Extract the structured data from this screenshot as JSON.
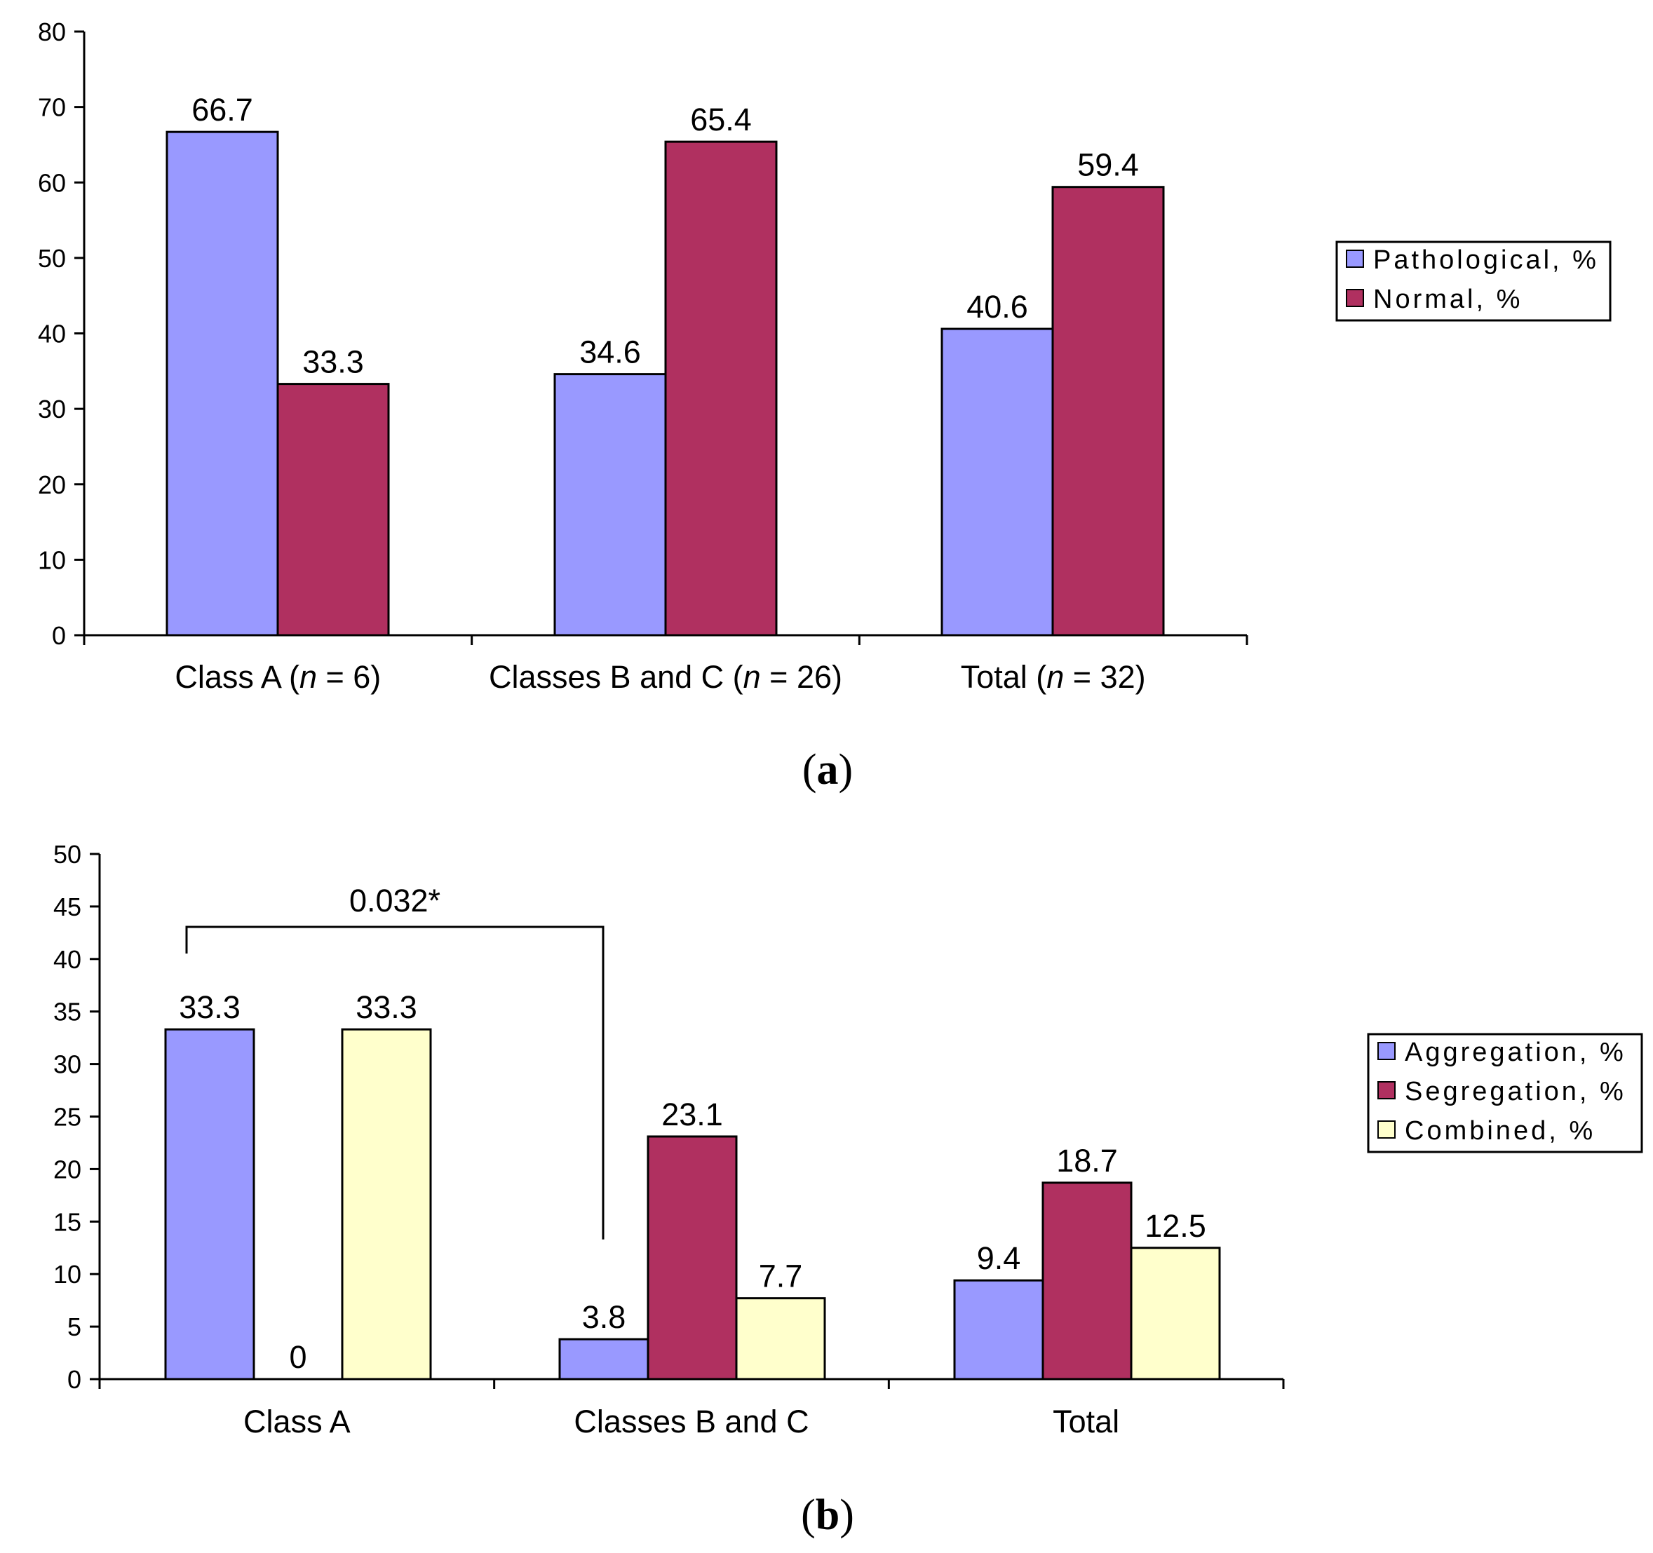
{
  "chart_data": [
    {
      "type": "bar",
      "panel_label": "a",
      "categories": [
        {
          "text": "Class A (",
          "italic": "n",
          "rest": " = 6)"
        },
        {
          "text": "Classes B and C (",
          "italic": "n",
          "rest": " = 26)"
        },
        {
          "text": "Total (",
          "italic": "n",
          "rest": " = 32)"
        }
      ],
      "series": [
        {
          "name": "Pathological, %",
          "color": "#9999FF",
          "values": [
            66.7,
            34.6,
            40.6
          ],
          "labels": [
            "66.7",
            "34.6",
            "40.6"
          ]
        },
        {
          "name": "Normal, %",
          "color": "#B03060",
          "values": [
            33.3,
            65.4,
            59.4
          ],
          "labels": [
            "33.3",
            "65.4",
            "59.4"
          ]
        }
      ],
      "ylim": [
        0,
        80
      ],
      "yticks": [
        "0",
        "10",
        "20",
        "30",
        "40",
        "50",
        "60",
        "70",
        "80"
      ],
      "legend_position": "right"
    },
    {
      "type": "bar",
      "panel_label": "b",
      "categories": [
        {
          "text": "Class A",
          "italic": "",
          "rest": ""
        },
        {
          "text": "Classes B and C",
          "italic": "",
          "rest": ""
        },
        {
          "text": "Total",
          "italic": "",
          "rest": ""
        }
      ],
      "series": [
        {
          "name": "Aggregation, %",
          "color": "#9999FF",
          "values": [
            33.3,
            3.8,
            9.4
          ],
          "labels": [
            "33.3",
            "3.8",
            "9.4"
          ]
        },
        {
          "name": "Segregation, %",
          "color": "#B03060",
          "values": [
            0,
            23.1,
            18.7
          ],
          "labels": [
            "0",
            "23.1",
            "18.7"
          ]
        },
        {
          "name": "Combined, %",
          "color": "#FFFFCC",
          "values": [
            33.3,
            7.7,
            12.5
          ],
          "labels": [
            "33.3",
            "7.7",
            "12.5"
          ]
        }
      ],
      "ylim": [
        0,
        50
      ],
      "yticks": [
        "0",
        "5",
        "10",
        "15",
        "20",
        "25",
        "30",
        "35",
        "40",
        "45",
        "50"
      ],
      "legend_position": "right",
      "annotation": {
        "text": "0.032*",
        "from_value": 40,
        "to_value": 13.3
      }
    }
  ]
}
